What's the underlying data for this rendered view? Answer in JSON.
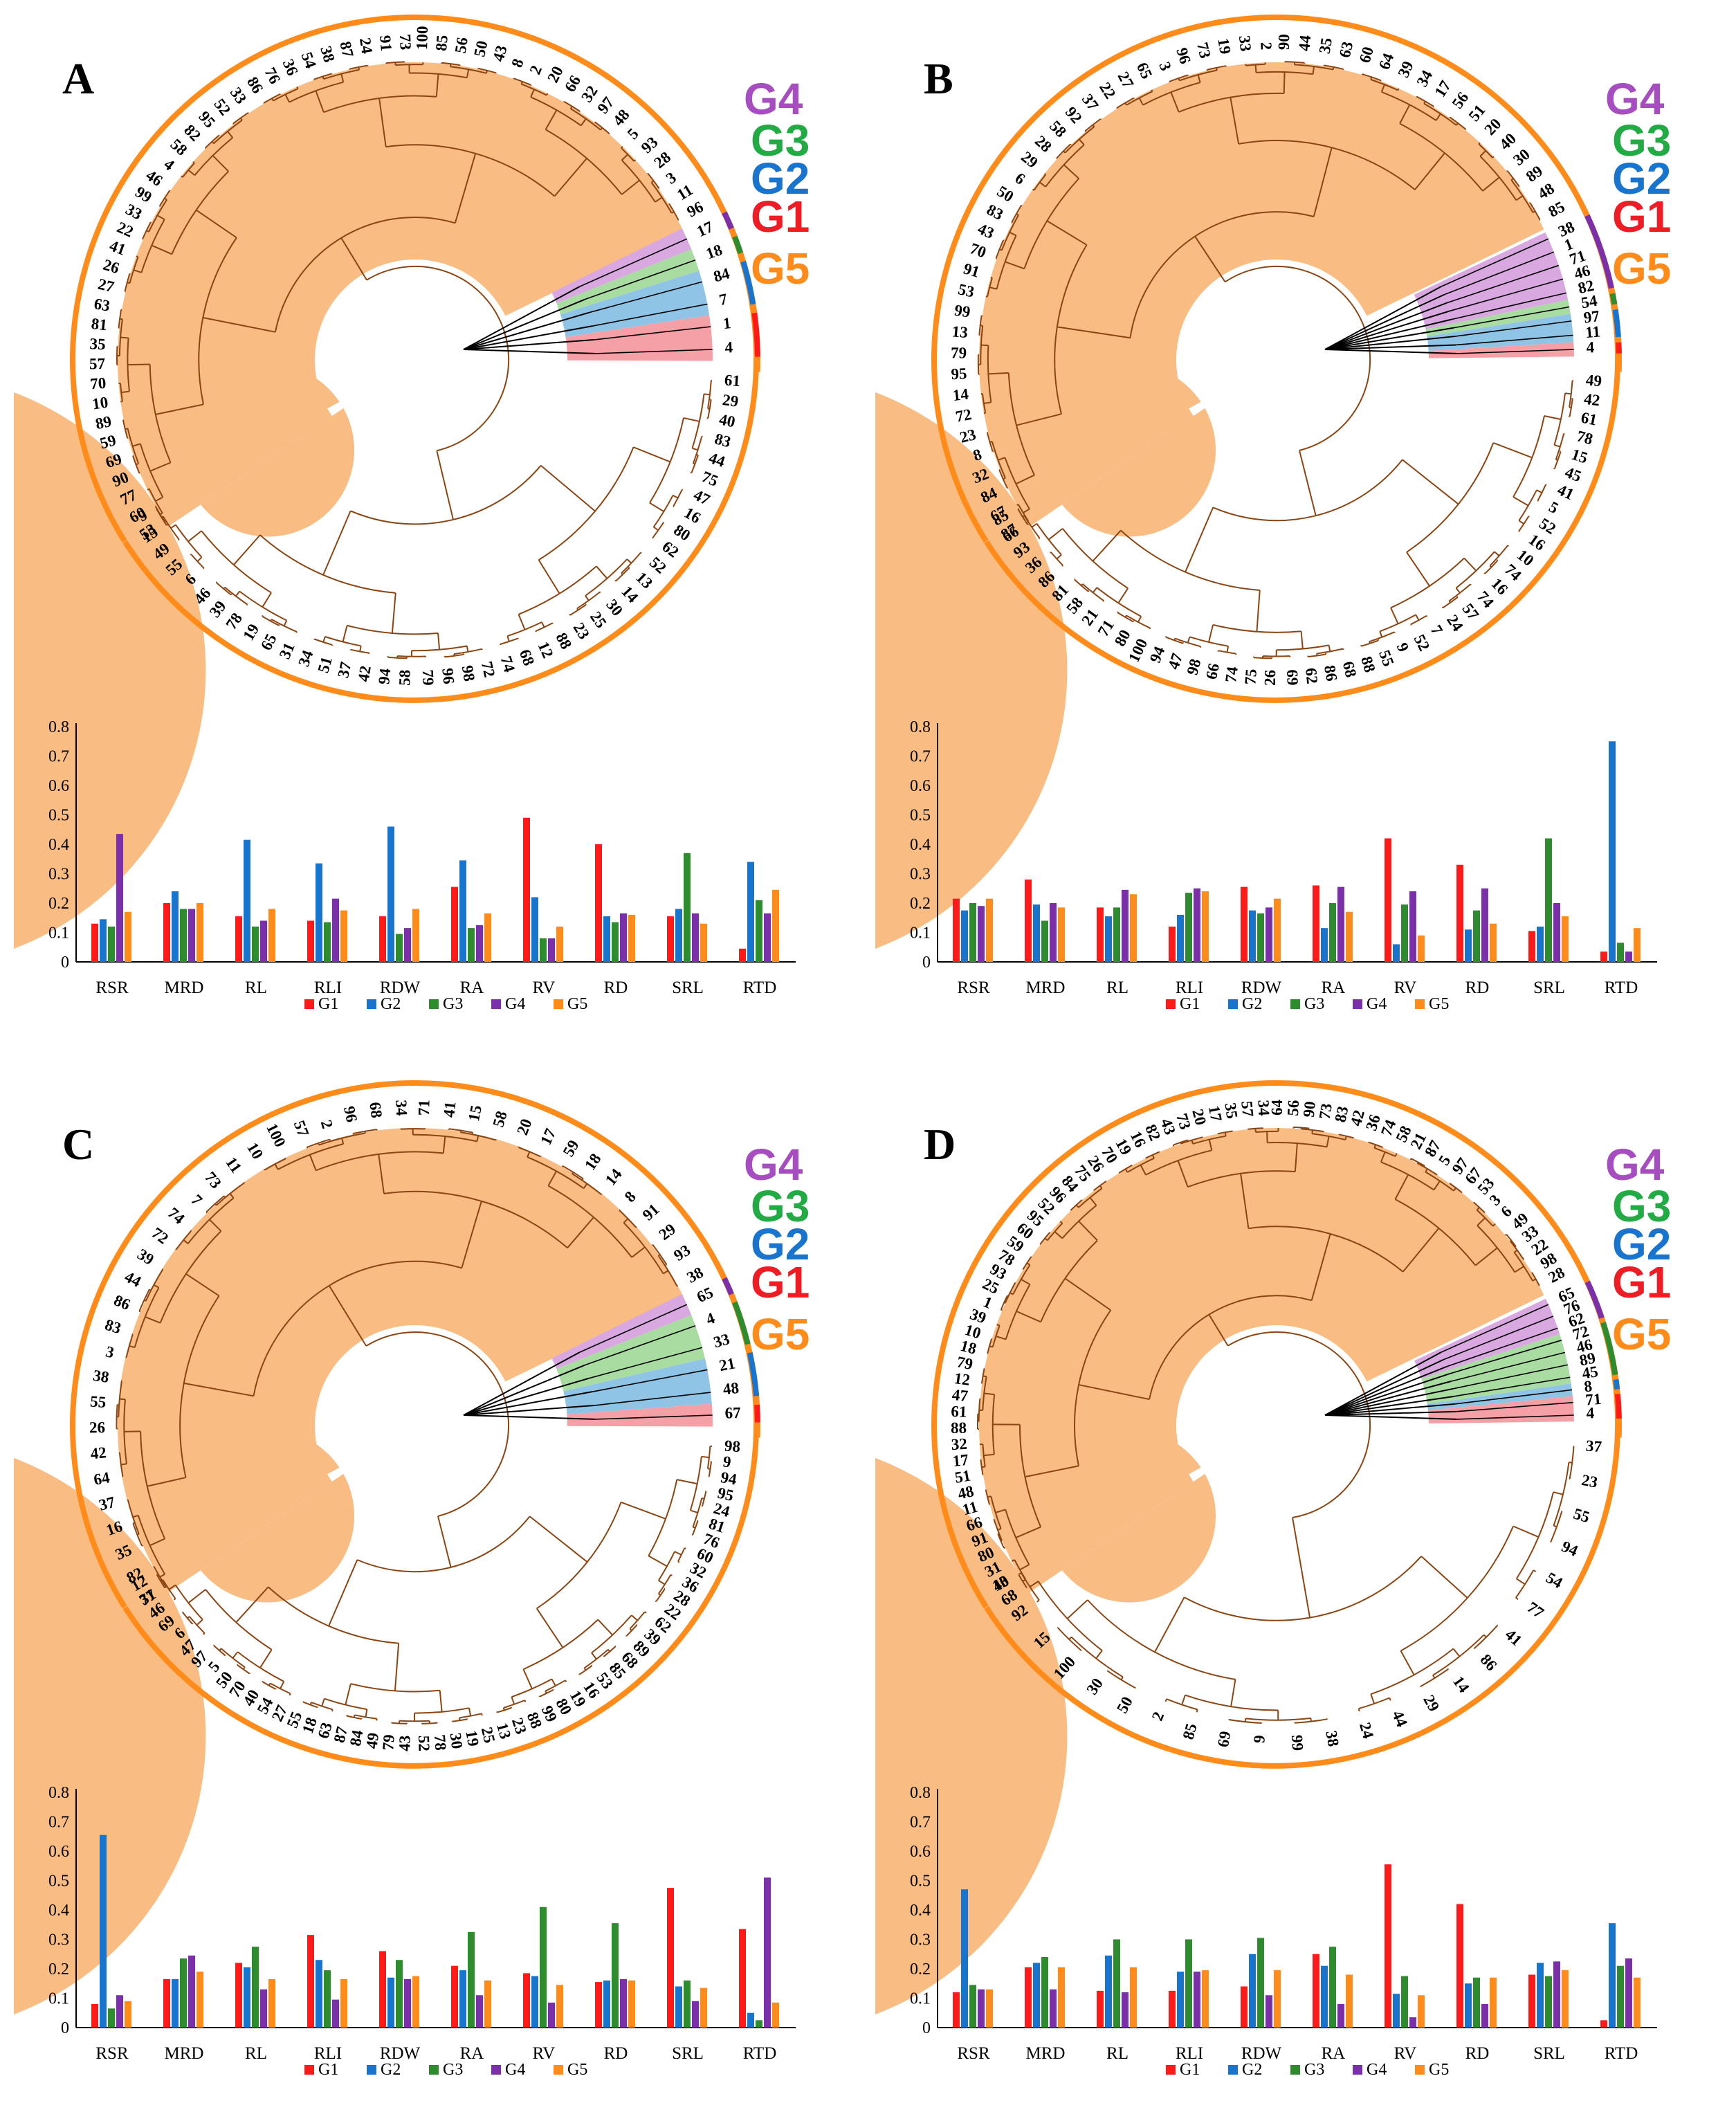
{
  "colors": {
    "G1": "#ff1a1a",
    "G2": "#1874cd",
    "G3": "#2e8b2e",
    "G4": "#7b2fa8",
    "G5": "#ff8c1a",
    "branch": "#8b4513",
    "fill_G5": "#f9bc82",
    "fill_G4": "#d9a8e0",
    "fill_G3": "#a8dca0",
    "fill_G2": "#8fc4e6",
    "fill_G1": "#f5a0a6"
  },
  "group_label_colors": {
    "G1": "#ee1c25",
    "G2": "#1874cd",
    "G3": "#22aa44",
    "G4": "#a64dbf",
    "G5": "#ff8c1a"
  },
  "legend": [
    "G1",
    "G2",
    "G3",
    "G4",
    "G5"
  ],
  "panels": [
    {
      "label": "A",
      "groups": [
        "G4",
        "G3",
        "G2",
        "G1",
        "G5"
      ],
      "tree_leaves": {
        "G1": [
          "1",
          "4"
        ],
        "G2": [
          "84",
          "7"
        ],
        "G3": [
          "18"
        ],
        "G4": [
          "17"
        ],
        "G5_upper": [
          "96",
          "11",
          "3",
          "28",
          "93",
          "5",
          "48",
          "97",
          "32",
          "66",
          "20",
          "2",
          "8",
          "43",
          "50",
          "56",
          "85",
          "100",
          "73",
          "91",
          "24",
          "87",
          "38",
          "54",
          "36",
          "76",
          "86",
          "33",
          "52",
          "95",
          "82",
          "58",
          "4",
          "46",
          "99",
          "33",
          "22",
          "41",
          "26",
          "27",
          "63",
          "81",
          "35",
          "57",
          "70",
          "10",
          "89",
          "59",
          "69",
          "90",
          "77",
          "60",
          "53"
        ],
        "G5_lower": [
          "61",
          "29",
          "40",
          "83",
          "44",
          "75",
          "47",
          "16",
          "80",
          "62",
          "52",
          "13",
          "14",
          "30",
          "25",
          "23",
          "88",
          "12",
          "68",
          "74",
          "72",
          "98",
          "96",
          "79",
          "58",
          "94",
          "42",
          "37",
          "51",
          "34",
          "31",
          "65",
          "19",
          "78",
          "39",
          "46",
          "6",
          "55",
          "49",
          "15",
          "9"
        ]
      },
      "chart_data": {
        "type": "bar",
        "categories": [
          "RSR",
          "MRD",
          "RL",
          "RLI",
          "RDW",
          "RA",
          "RV",
          "RD",
          "SRL",
          "RTD"
        ],
        "ylim": [
          0,
          0.8
        ],
        "yticks": [
          "0",
          "0.1",
          "0.2",
          "0.3",
          "0.4",
          "0.5",
          "0.6",
          "0.7",
          "0.8"
        ],
        "series": [
          {
            "name": "G1",
            "values": [
              0.13,
              0.2,
              0.155,
              0.14,
              0.155,
              0.255,
              0.49,
              0.4,
              0.155,
              0.045
            ]
          },
          {
            "name": "G2",
            "values": [
              0.145,
              0.24,
              0.415,
              0.335,
              0.46,
              0.345,
              0.22,
              0.155,
              0.18,
              0.34
            ]
          },
          {
            "name": "G3",
            "values": [
              0.12,
              0.18,
              0.12,
              0.135,
              0.095,
              0.115,
              0.08,
              0.135,
              0.37,
              0.21
            ]
          },
          {
            "name": "G4",
            "values": [
              0.435,
              0.18,
              0.14,
              0.215,
              0.115,
              0.125,
              0.08,
              0.165,
              0.165,
              0.165
            ]
          },
          {
            "name": "G5",
            "values": [
              0.17,
              0.2,
              0.18,
              0.175,
              0.18,
              0.165,
              0.12,
              0.16,
              0.13,
              0.245
            ]
          }
        ]
      }
    },
    {
      "label": "B",
      "groups": [
        "G4",
        "G3",
        "G2",
        "G1",
        "G5"
      ],
      "tree_leaves": {
        "G1": [
          "4"
        ],
        "G2": [
          "97",
          "11"
        ],
        "G3": [
          "54"
        ],
        "G4": [
          "38",
          "1",
          "71",
          "46",
          "82"
        ],
        "G5_upper": [
          "85",
          "48",
          "89",
          "30",
          "40",
          "20",
          "51",
          "56",
          "17",
          "34",
          "39",
          "64",
          "60",
          "63",
          "35",
          "44",
          "90",
          "2",
          "33",
          "19",
          "73",
          "96",
          "3",
          "65",
          "27",
          "22",
          "37",
          "92",
          "58",
          "28",
          "29",
          "6",
          "50",
          "83",
          "43",
          "70",
          "91",
          "53",
          "99",
          "13",
          "79",
          "95",
          "14",
          "72",
          "23",
          "8",
          "32",
          "84",
          "67",
          "87"
        ],
        "G5_lower": [
          "49",
          "42",
          "61",
          "78",
          "15",
          "45",
          "41",
          "5",
          "52",
          "16",
          "10",
          "74",
          "16",
          "74",
          "57",
          "24",
          "7",
          "52",
          "9",
          "55",
          "88",
          "68",
          "86",
          "62",
          "69",
          "26",
          "75",
          "74",
          "66",
          "98",
          "47",
          "94",
          "100",
          "80",
          "71",
          "21",
          "58",
          "81",
          "86",
          "36",
          "93",
          "66",
          "85"
        ]
      },
      "chart_data": {
        "type": "bar",
        "categories": [
          "RSR",
          "MRD",
          "RL",
          "RLI",
          "RDW",
          "RA",
          "RV",
          "RD",
          "SRL",
          "RTD"
        ],
        "ylim": [
          0,
          0.8
        ],
        "yticks": [
          "0",
          "0.1",
          "0.2",
          "0.3",
          "0.4",
          "0.5",
          "0.6",
          "0.7",
          "0.8"
        ],
        "series": [
          {
            "name": "G1",
            "values": [
              0.215,
              0.28,
              0.185,
              0.12,
              0.255,
              0.26,
              0.42,
              0.33,
              0.105,
              0.035
            ]
          },
          {
            "name": "G2",
            "values": [
              0.175,
              0.195,
              0.155,
              0.16,
              0.175,
              0.115,
              0.06,
              0.11,
              0.12,
              0.75
            ]
          },
          {
            "name": "G3",
            "values": [
              0.2,
              0.14,
              0.185,
              0.235,
              0.165,
              0.2,
              0.195,
              0.175,
              0.42,
              0.065
            ]
          },
          {
            "name": "G4",
            "values": [
              0.19,
              0.2,
              0.245,
              0.25,
              0.185,
              0.255,
              0.24,
              0.25,
              0.2,
              0.035
            ]
          },
          {
            "name": "G5",
            "values": [
              0.215,
              0.185,
              0.23,
              0.24,
              0.215,
              0.17,
              0.09,
              0.13,
              0.155,
              0.115
            ]
          }
        ]
      }
    },
    {
      "label": "C",
      "groups": [
        "G4",
        "G3",
        "G2",
        "G1",
        "G5"
      ],
      "tree_leaves": {
        "G1": [
          "67"
        ],
        "G2": [
          "21",
          "48"
        ],
        "G3": [
          "4",
          "33"
        ],
        "G4": [
          "65"
        ],
        "G5_upper": [
          "38",
          "93",
          "29",
          "91",
          "8",
          "14",
          "18",
          "59",
          "17",
          "20",
          "58",
          "15",
          "41",
          "71",
          "34",
          "68",
          "96",
          "2",
          "57",
          "100",
          "10",
          "11",
          "73",
          "7",
          "74",
          "72",
          "39",
          "44",
          "86",
          "83",
          "3",
          "38",
          "55",
          "26",
          "42",
          "64",
          "37",
          "16",
          "35",
          "82",
          "77"
        ],
        "G5_lower": [
          "98",
          "9",
          "94",
          "95",
          "24",
          "81",
          "76",
          "60",
          "32",
          "36",
          "28",
          "22",
          "62",
          "39",
          "89",
          "68",
          "85",
          "53",
          "16",
          "19",
          "80",
          "99",
          "88",
          "23",
          "13",
          "25",
          "19",
          "30",
          "78",
          "52",
          "43",
          "79",
          "49",
          "84",
          "87",
          "63",
          "18",
          "55",
          "27",
          "54",
          "40",
          "70",
          "50",
          "5",
          "97",
          "47",
          "6",
          "69",
          "46",
          "31",
          "12"
        ]
      },
      "chart_data": {
        "type": "bar",
        "categories": [
          "RSR",
          "MRD",
          "RL",
          "RLI",
          "RDW",
          "RA",
          "RV",
          "RD",
          "SRL",
          "RTD"
        ],
        "ylim": [
          0,
          0.8
        ],
        "yticks": [
          "0",
          "0.1",
          "0.2",
          "0.3",
          "0.4",
          "0.5",
          "0.6",
          "0.7",
          "0.8"
        ],
        "series": [
          {
            "name": "G1",
            "values": [
              0.08,
              0.165,
              0.22,
              0.315,
              0.26,
              0.21,
              0.185,
              0.155,
              0.475,
              0.335
            ]
          },
          {
            "name": "G2",
            "values": [
              0.655,
              0.165,
              0.205,
              0.23,
              0.17,
              0.195,
              0.175,
              0.16,
              0.14,
              0.05
            ]
          },
          {
            "name": "G3",
            "values": [
              0.065,
              0.235,
              0.275,
              0.195,
              0.23,
              0.325,
              0.41,
              0.355,
              0.16,
              0.025
            ]
          },
          {
            "name": "G4",
            "values": [
              0.11,
              0.245,
              0.13,
              0.095,
              0.165,
              0.11,
              0.085,
              0.165,
              0.09,
              0.51
            ]
          },
          {
            "name": "G5",
            "values": [
              0.09,
              0.19,
              0.165,
              0.165,
              0.175,
              0.16,
              0.145,
              0.16,
              0.135,
              0.085
            ]
          }
        ]
      }
    },
    {
      "label": "D",
      "groups": [
        "G4",
        "G3",
        "G2",
        "G1",
        "G5"
      ],
      "tree_leaves": {
        "G1": [
          "71",
          "4"
        ],
        "G2": [
          "8"
        ],
        "G3": [
          "72",
          "46",
          "89",
          "45"
        ],
        "G4": [
          "65",
          "76",
          "62"
        ],
        "G5_upper": [
          "28",
          "98",
          "22",
          "33",
          "49",
          "6",
          "3",
          "53",
          "67",
          "97",
          "5",
          "87",
          "21",
          "58",
          "74",
          "36",
          "42",
          "83",
          "73",
          "90",
          "56",
          "64",
          "34",
          "57",
          "35",
          "17",
          "20",
          "73",
          "43",
          "82",
          "16",
          "19",
          "70",
          "26",
          "75",
          "84",
          "96",
          "52",
          "95",
          "60",
          "59",
          "78",
          "93",
          "25",
          "1",
          "39",
          "10",
          "18",
          "79",
          "12",
          "47",
          "61",
          "88",
          "32",
          "17",
          "51",
          "48",
          "11",
          "66",
          "91",
          "80",
          "31",
          "40",
          "68"
        ],
        "G5_lower": [
          "37",
          "23",
          "55",
          "94",
          "54",
          "77",
          "41",
          "86",
          "14",
          "29",
          "44",
          "24",
          "38",
          "99",
          "9",
          "69",
          "85",
          "2",
          "50",
          "30",
          "100",
          "15",
          "92",
          "13"
        ]
      },
      "chart_data": {
        "type": "bar",
        "categories": [
          "RSR",
          "MRD",
          "RL",
          "RLI",
          "RDW",
          "RA",
          "RV",
          "RD",
          "SRL",
          "RTD"
        ],
        "ylim": [
          0,
          0.8
        ],
        "yticks": [
          "0",
          "0.1",
          "0.2",
          "0.3",
          "0.4",
          "0.5",
          "0.6",
          "0.7",
          "0.8"
        ],
        "series": [
          {
            "name": "G1",
            "values": [
              0.12,
              0.205,
              0.125,
              0.125,
              0.14,
              0.25,
              0.555,
              0.42,
              0.18,
              0.025
            ]
          },
          {
            "name": "G2",
            "values": [
              0.47,
              0.22,
              0.245,
              0.19,
              0.25,
              0.21,
              0.115,
              0.15,
              0.22,
              0.355
            ]
          },
          {
            "name": "G3",
            "values": [
              0.145,
              0.24,
              0.3,
              0.3,
              0.305,
              0.275,
              0.175,
              0.17,
              0.175,
              0.21
            ]
          },
          {
            "name": "G4",
            "values": [
              0.13,
              0.13,
              0.12,
              0.19,
              0.11,
              0.08,
              0.035,
              0.08,
              0.225,
              0.235
            ]
          },
          {
            "name": "G5",
            "values": [
              0.13,
              0.205,
              0.205,
              0.195,
              0.195,
              0.18,
              0.11,
              0.17,
              0.195,
              0.17
            ]
          }
        ]
      }
    }
  ]
}
